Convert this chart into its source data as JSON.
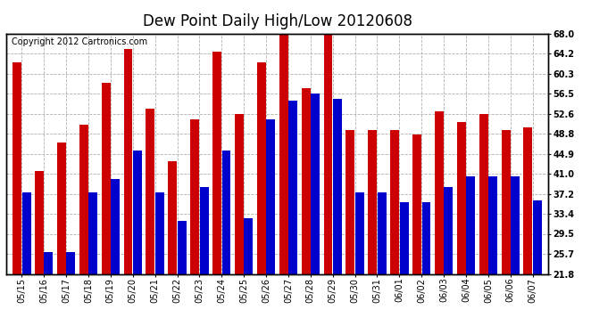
{
  "title": "Dew Point Daily High/Low 20120608",
  "copyright": "Copyright 2012 Cartronics.com",
  "dates": [
    "05/15",
    "05/16",
    "05/17",
    "05/18",
    "05/19",
    "05/20",
    "05/21",
    "05/22",
    "05/23",
    "05/24",
    "05/25",
    "05/26",
    "05/27",
    "05/28",
    "05/29",
    "05/30",
    "05/31",
    "06/01",
    "06/02",
    "06/03",
    "06/04",
    "06/05",
    "06/06",
    "06/07"
  ],
  "highs": [
    62.5,
    41.5,
    47.0,
    50.5,
    58.5,
    65.0,
    53.5,
    43.5,
    51.5,
    64.5,
    52.5,
    62.5,
    68.0,
    57.5,
    68.0,
    49.5,
    49.5,
    49.5,
    48.5,
    53.0,
    51.0,
    52.5,
    49.5,
    50.0
  ],
  "lows": [
    37.5,
    26.0,
    26.0,
    37.5,
    40.0,
    45.5,
    37.5,
    32.0,
    38.5,
    45.5,
    32.5,
    51.5,
    55.0,
    56.5,
    55.5,
    37.5,
    37.5,
    35.5,
    35.5,
    38.5,
    40.5,
    40.5,
    40.5,
    36.0
  ],
  "high_color": "#cc0000",
  "low_color": "#0000cc",
  "bg_color": "#ffffff",
  "plot_bg_color": "#ffffff",
  "grid_color": "#b0b0b0",
  "ylim_min": 21.8,
  "ylim_max": 68.0,
  "yticks": [
    21.8,
    25.7,
    29.5,
    33.4,
    37.2,
    41.0,
    44.9,
    48.8,
    52.6,
    56.5,
    60.3,
    64.2,
    68.0
  ],
  "title_fontsize": 12,
  "tick_fontsize": 7,
  "copyright_fontsize": 7
}
